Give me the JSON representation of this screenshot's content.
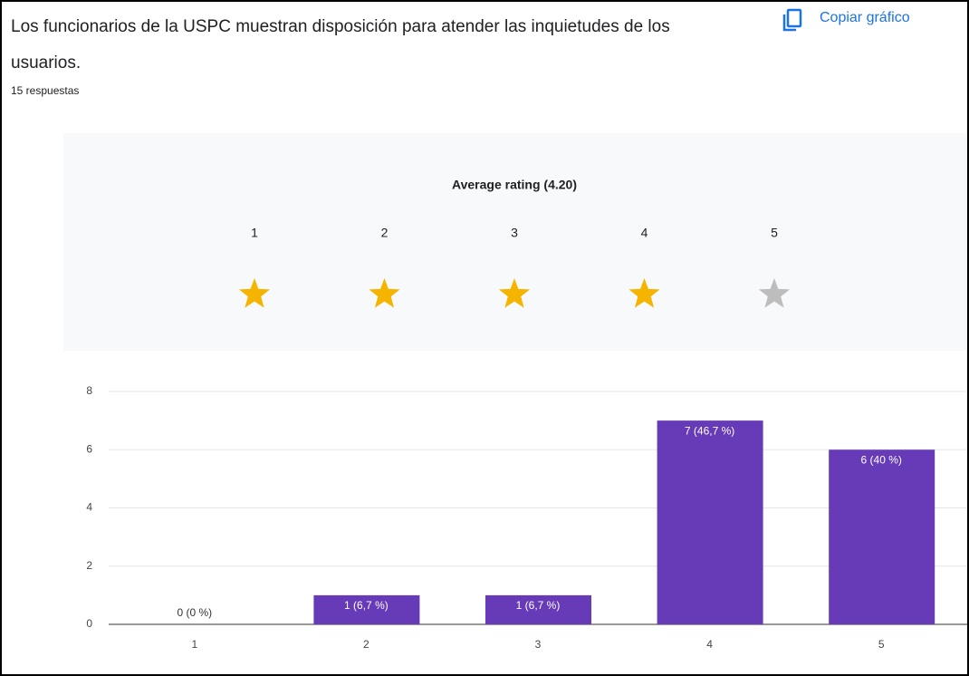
{
  "header": {
    "title": "Los funcionarios de la USPC muestran disposición para atender las inquietudes de los usuarios.",
    "responses": "15 respuestas",
    "copy_button": "Copiar gráfico"
  },
  "rating": {
    "title": "Average rating (4.20)",
    "filled_color": "#f4b400",
    "empty_color": "#bdbdbd",
    "stars": [
      {
        "label": "1",
        "filled": true
      },
      {
        "label": "2",
        "filled": true
      },
      {
        "label": "3",
        "filled": true
      },
      {
        "label": "4",
        "filled": true
      },
      {
        "label": "5",
        "filled": false
      }
    ]
  },
  "chart_data": {
    "type": "bar",
    "categories": [
      "1",
      "2",
      "3",
      "4",
      "5"
    ],
    "values": [
      0,
      1,
      1,
      7,
      6
    ],
    "value_labels": [
      "0 (0 %)",
      "1 (6,7 %)",
      "1 (6,7 %)",
      "7 (46,7 %)",
      "6 (40 %)"
    ],
    "color": "#673ab7",
    "ylim": [
      0,
      8
    ],
    "yticks": [
      0,
      2,
      4,
      6,
      8
    ],
    "grid": true
  }
}
